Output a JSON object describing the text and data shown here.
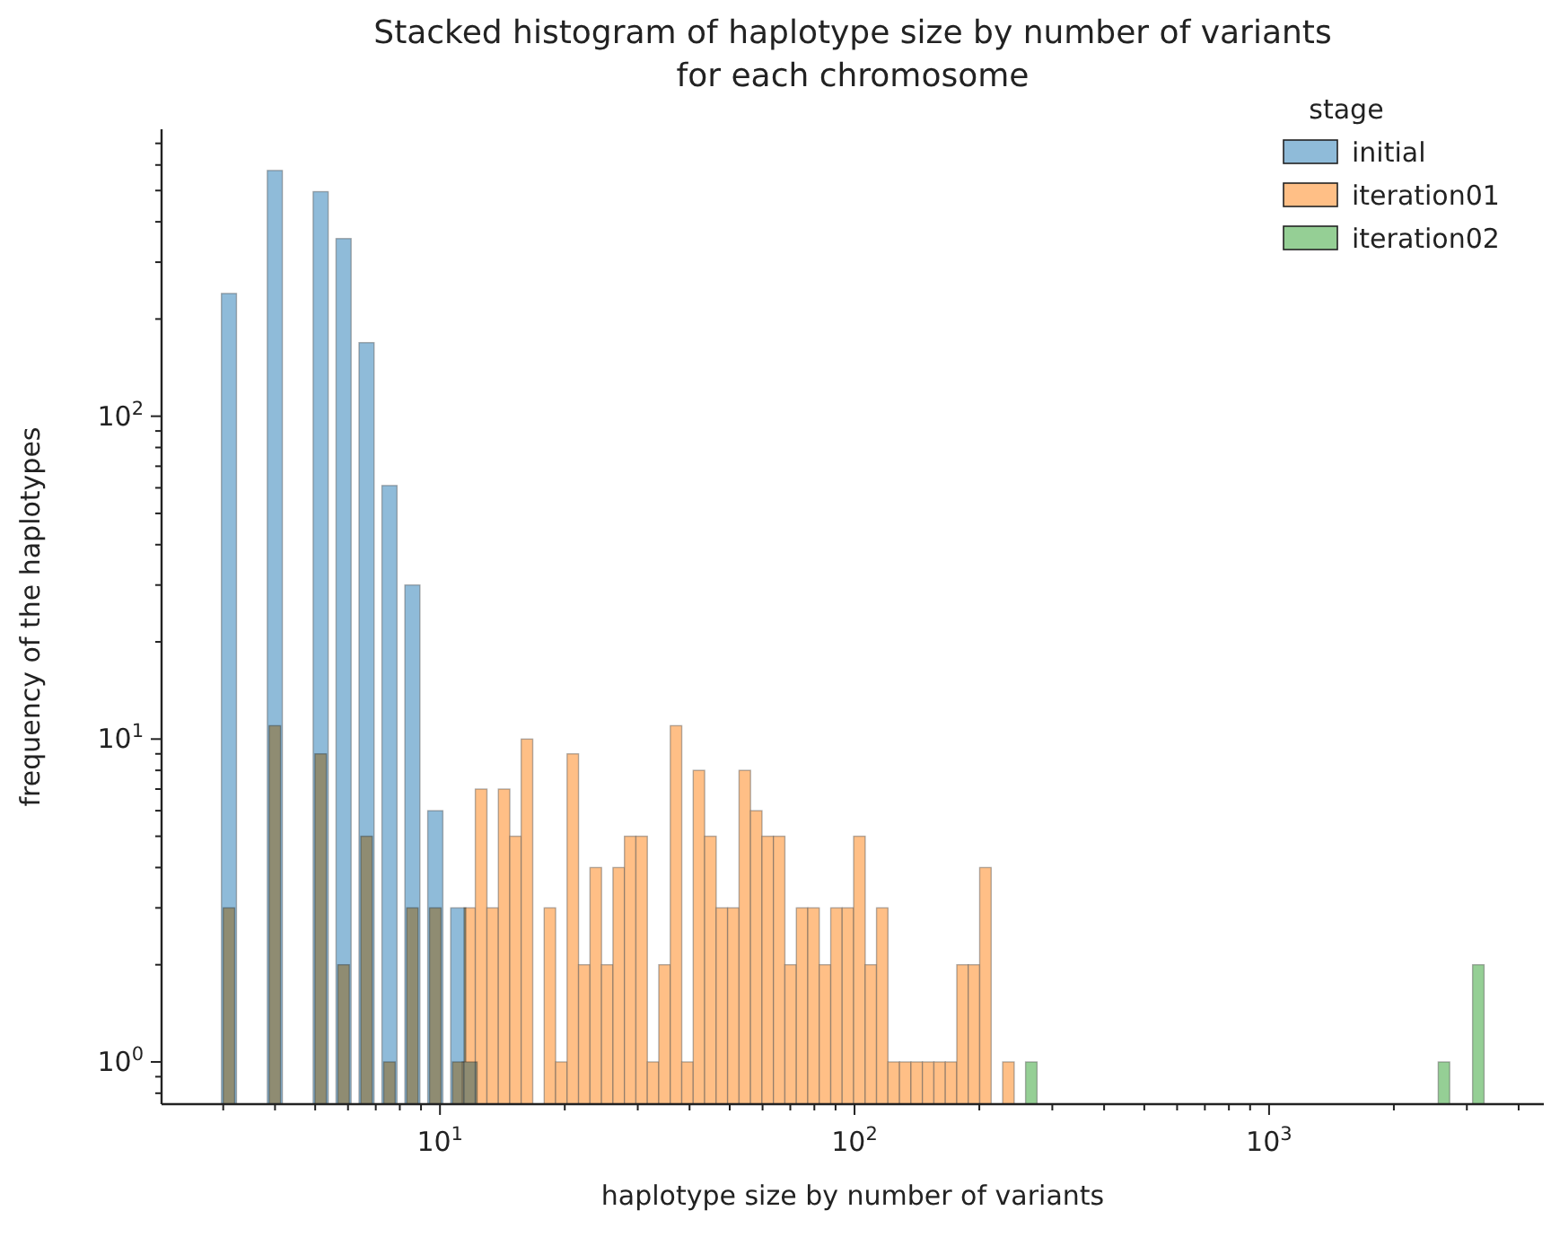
{
  "chart_data": {
    "type": "histogram",
    "title": "Stacked histogram of haplotype size by number of variants\nfor each chromosome",
    "xlabel": "haplotype size by number of variants",
    "ylabel": "frequency of the haplotypes",
    "legend_title": "stage",
    "legend": "top right",
    "log": "xy",
    "xlim": [
      2.13,
      4600
    ],
    "ylim": [
      0.74,
      774
    ],
    "xticks": [
      {
        "value": 3,
        "label": null
      },
      {
        "value": 4,
        "label": null
      },
      {
        "value": 5,
        "label": null
      },
      {
        "value": 6,
        "label": null
      },
      {
        "value": 7,
        "label": null
      },
      {
        "value": 8,
        "label": null
      },
      {
        "value": 9,
        "label": null
      },
      {
        "value": 10,
        "label": "10$^{1}$"
      },
      {
        "value": 20,
        "label": null
      },
      {
        "value": 30,
        "label": null
      },
      {
        "value": 40,
        "label": null
      },
      {
        "value": 50,
        "label": null
      },
      {
        "value": 60,
        "label": null
      },
      {
        "value": 70,
        "label": null
      },
      {
        "value": 80,
        "label": null
      },
      {
        "value": 90,
        "label": null
      },
      {
        "value": 100,
        "label": "10$^{2}$"
      },
      {
        "value": 200,
        "label": null
      },
      {
        "value": 300,
        "label": null
      },
      {
        "value": 400,
        "label": null
      },
      {
        "value": 500,
        "label": null
      },
      {
        "value": 600,
        "label": null
      },
      {
        "value": 700,
        "label": null
      },
      {
        "value": 800,
        "label": null
      },
      {
        "value": 900,
        "label": null
      },
      {
        "value": 1000,
        "label": "10$^{3}$"
      },
      {
        "value": 2000,
        "label": null
      },
      {
        "value": 3000,
        "label": null
      },
      {
        "value": 4000,
        "label": null
      }
    ],
    "yticks": [
      {
        "value": 0.8,
        "label": null
      },
      {
        "value": 0.9,
        "label": null
      },
      {
        "value": 1,
        "label": "10$^{0}$"
      },
      {
        "value": 2,
        "label": null
      },
      {
        "value": 3,
        "label": null
      },
      {
        "value": 4,
        "label": null
      },
      {
        "value": 5,
        "label": null
      },
      {
        "value": 6,
        "label": null
      },
      {
        "value": 7,
        "label": null
      },
      {
        "value": 8,
        "label": null
      },
      {
        "value": 9,
        "label": null
      },
      {
        "value": 10,
        "label": "10$^{1}$"
      },
      {
        "value": 20,
        "label": null
      },
      {
        "value": 30,
        "label": null
      },
      {
        "value": 40,
        "label": null
      },
      {
        "value": 50,
        "label": null
      },
      {
        "value": 60,
        "label": null
      },
      {
        "value": 70,
        "label": null
      },
      {
        "value": 80,
        "label": null
      },
      {
        "value": 90,
        "label": null
      },
      {
        "value": 100,
        "label": "10$^{2}$"
      },
      {
        "value": 200,
        "label": null
      },
      {
        "value": 300,
        "label": null
      },
      {
        "value": 400,
        "label": null
      },
      {
        "value": 500,
        "label": null
      },
      {
        "value": 600,
        "label": null
      },
      {
        "value": 700,
        "label": null
      }
    ],
    "bins": [
      3.0,
      3.197,
      3.871,
      4.125,
      4.993,
      5.321,
      5.671,
      6.044,
      6.442,
      6.865,
      7.317,
      7.798,
      8.311,
      8.857,
      9.436,
      10.06,
      10.72,
      11.43,
      12.17,
      12.98,
      13.83,
      14.74,
      15.7,
      16.74,
      17.84,
      19.01,
      20.26,
      21.59,
      23.01,
      24.53,
      26.14,
      27.86,
      29.69,
      31.64,
      33.72,
      35.94,
      38.3,
      40.82,
      43.5,
      46.37,
      49.41,
      52.66,
      56.12,
      59.81,
      63.74,
      67.92,
      72.39,
      77.15,
      82.22,
      87.62,
      93.37,
      99.52,
      106.1,
      113.0,
      120.4,
      128.4,
      136.8,
      145.8,
      155.4,
      165.6,
      176.5,
      188.1,
      200.4,
      213.6,
      227.7,
      242.7,
      258.6,
      275.6,
      2559,
      2727,
      3097,
      3301
    ],
    "series": [
      {
        "name": "initial",
        "color": "#8fbbd9",
        "values": [
          240,
          null,
          577,
          null,
          496,
          null,
          355,
          null,
          169,
          null,
          61,
          null,
          30,
          null,
          6,
          null,
          3,
          1,
          null,
          null,
          null,
          null,
          null,
          null,
          null,
          null,
          null,
          null,
          null,
          null,
          null,
          null,
          null,
          null,
          null,
          null,
          null,
          null,
          null,
          null,
          null,
          null,
          null,
          null,
          null,
          null,
          null,
          null,
          null,
          null,
          null,
          null,
          null,
          null,
          null,
          null,
          null,
          null,
          null,
          null,
          null,
          null,
          null,
          null,
          null,
          null,
          null,
          null,
          null,
          null,
          null
        ]
      },
      {
        "name": "iteration01",
        "color": "#ffbf86",
        "values": [
          3,
          null,
          11,
          null,
          9,
          null,
          2,
          null,
          5,
          null,
          1,
          null,
          3,
          null,
          3,
          null,
          1,
          3,
          7,
          3,
          7,
          5,
          10,
          null,
          3,
          1,
          9,
          2,
          4,
          2,
          4,
          5,
          5,
          1,
          2,
          11,
          1,
          8,
          5,
          3,
          3,
          8,
          6,
          5,
          5,
          2,
          3,
          3,
          2,
          3,
          3,
          5,
          2,
          3,
          1,
          1,
          1,
          1,
          1,
          1,
          2,
          2,
          4,
          null,
          1,
          null,
          null,
          null,
          null,
          null,
          null
        ]
      },
      {
        "name": "iteration02",
        "color": "#95cf95",
        "values": [
          null,
          null,
          null,
          null,
          null,
          null,
          null,
          null,
          null,
          null,
          null,
          null,
          null,
          null,
          null,
          null,
          null,
          null,
          null,
          null,
          null,
          null,
          null,
          null,
          null,
          null,
          null,
          null,
          null,
          null,
          null,
          null,
          null,
          null,
          null,
          null,
          null,
          null,
          null,
          null,
          null,
          null,
          null,
          null,
          null,
          null,
          null,
          null,
          null,
          null,
          null,
          null,
          null,
          null,
          null,
          null,
          null,
          null,
          null,
          null,
          null,
          null,
          null,
          null,
          null,
          null,
          1,
          null,
          1,
          null,
          2
        ]
      }
    ]
  }
}
